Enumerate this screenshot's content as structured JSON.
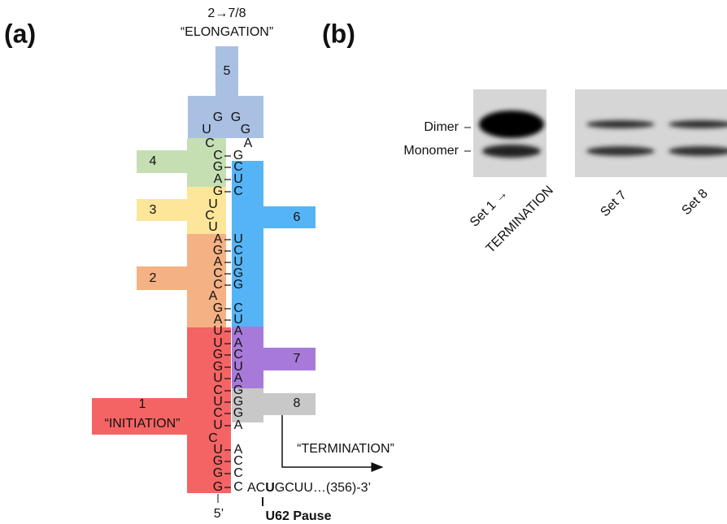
{
  "panel_a": {
    "label": "(a)",
    "elongation_step": "2→7/8",
    "elongation": "“ELONGATION”",
    "regions": [
      "1",
      "2",
      "3",
      "4",
      "5",
      "6",
      "7",
      "8"
    ],
    "initiation": "“INITIATION”",
    "termination": "“TERMINATION”",
    "loop": [
      "G",
      "G",
      "U",
      "G",
      "C",
      "A"
    ],
    "stem_left": [
      "C",
      "G",
      "A",
      "G",
      "U",
      "C",
      "U",
      "A",
      "G",
      "A",
      "C",
      "C",
      "A",
      "G",
      "A",
      "U",
      "U",
      "G",
      "G",
      "U",
      "C",
      "U",
      "C",
      "U",
      "C",
      "U",
      "G",
      "G",
      "G"
    ],
    "stem_right": [
      "G",
      "C",
      "U",
      "C",
      null,
      null,
      null,
      "U",
      "C",
      "U",
      "G",
      "G",
      null,
      "C",
      "U",
      "A",
      "A",
      "C",
      "U",
      "A",
      "G",
      "G",
      "G",
      "A",
      null,
      "A",
      "C",
      "C",
      "C"
    ],
    "tail": [
      "AC",
      "U",
      "GCUU…(356)-3’"
    ],
    "five_prime": "5’",
    "pause": "U62 Pause"
  },
  "panel_b": {
    "label": "(b)",
    "bands": [
      "Dimer",
      "Monomer"
    ],
    "lanes": [
      "Set 1 →",
      "TERMINATION",
      "Set 7",
      "Set 8"
    ]
  }
}
